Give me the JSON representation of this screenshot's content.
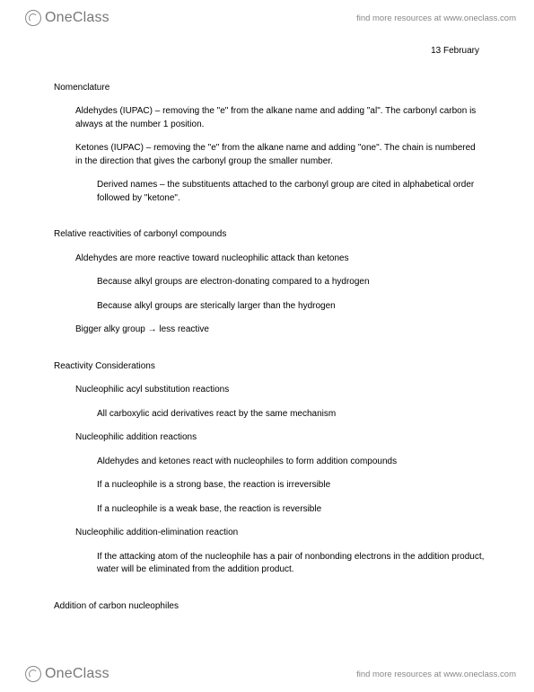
{
  "brand": {
    "name": "OneClass",
    "tagline": "find more resources at www.oneclass.com"
  },
  "date": "13 February",
  "sections": [
    {
      "title": "Nomenclature",
      "items": [
        {
          "level": 1,
          "text": "Aldehydes (IUPAC) – removing the \"e\" from the alkane name and adding \"al\".  The carbonyl carbon is always at the number 1 position."
        },
        {
          "level": 1,
          "text": "Ketones (IUPAC) – removing the \"e\" from the alkane name and adding \"one\".  The chain is numbered in the direction that gives the carbonyl group the smaller number."
        },
        {
          "level": 2,
          "text": "Derived names – the substituents attached to the carbonyl group are cited in alphabetical order followed by \"ketone\"."
        }
      ]
    },
    {
      "title": "Relative reactivities of carbonyl compounds",
      "items": [
        {
          "level": 1,
          "text": "Aldehydes are more reactive toward nucleophilic attack than ketones"
        },
        {
          "level": 2,
          "text": "Because alkyl groups are electron-donating compared to a hydrogen"
        },
        {
          "level": 2,
          "text": "Because alkyl groups are sterically larger than the hydrogen"
        },
        {
          "level": 1,
          "text": "Bigger alky group → less reactive"
        }
      ]
    },
    {
      "title": "Reactivity Considerations",
      "items": [
        {
          "level": 1,
          "text": "Nucleophilic acyl substitution reactions"
        },
        {
          "level": 2,
          "text": "All carboxylic acid derivatives react by the same mechanism"
        },
        {
          "level": 1,
          "text": "Nucleophilic addition reactions"
        },
        {
          "level": 2,
          "text": "Aldehydes and ketones react with nucleophiles to form addition compounds"
        },
        {
          "level": 2,
          "text": "If a nucleophile is a strong base, the reaction is irreversible"
        },
        {
          "level": 2,
          "text": "If a nucleophile is a weak base, the reaction is reversible"
        },
        {
          "level": 1,
          "text": "Nucleophilic addition-elimination reaction"
        },
        {
          "level": 2,
          "text": "If the attacking atom of the nucleophile has a pair of nonbonding electrons in the addition product, water will be eliminated from the addition product."
        }
      ]
    },
    {
      "title": "Addition of carbon nucleophiles",
      "items": []
    }
  ]
}
